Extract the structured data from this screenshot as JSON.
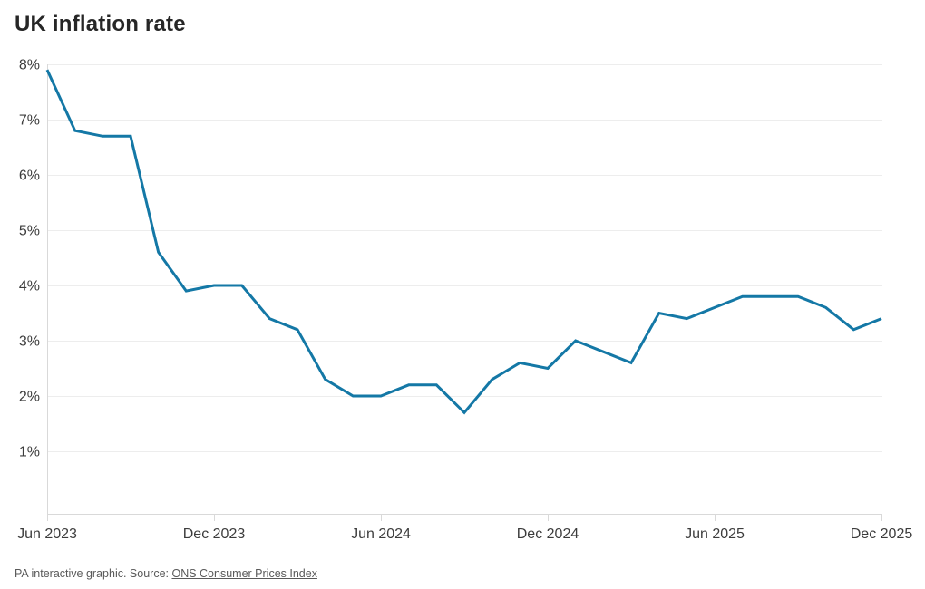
{
  "chart": {
    "title": "UK inflation rate"
  },
  "chart_data": {
    "type": "line",
    "title": "UK inflation rate",
    "series_name": "UK inflation rate",
    "x": [
      "Jun 2023",
      "Jul 2023",
      "Aug 2023",
      "Sep 2023",
      "Oct 2023",
      "Nov 2023",
      "Dec 2023",
      "Jan 2024",
      "Feb 2024",
      "Mar 2024",
      "Apr 2024",
      "May 2024",
      "Jun 2024",
      "Jul 2024",
      "Aug 2024",
      "Sep 2024",
      "Oct 2024",
      "Nov 2024",
      "Dec 2024",
      "Jan 2025",
      "Feb 2025",
      "Mar 2025",
      "Apr 2025",
      "May 2025",
      "Jun 2025",
      "Jul 2025",
      "Aug 2025",
      "Sep 2025",
      "Oct 2025",
      "Nov 2025",
      "Dec 2025"
    ],
    "values": [
      7.9,
      6.8,
      6.7,
      6.7,
      4.6,
      3.9,
      4.0,
      4.0,
      3.4,
      3.2,
      2.3,
      2.0,
      2.0,
      2.2,
      2.2,
      1.7,
      2.3,
      2.6,
      2.5,
      3.0,
      2.8,
      2.6,
      3.5,
      3.4,
      3.6,
      3.8,
      3.8,
      3.8,
      3.6,
      3.2,
      3.4
    ],
    "xlabel": "",
    "ylabel": "",
    "x_tick_labels": [
      "Jun 2023",
      "Dec 2023",
      "Jun 2024",
      "Dec 2024",
      "Jun 2025",
      "Dec 2025"
    ],
    "y_ticks": [
      8,
      7,
      6,
      5,
      4,
      3,
      2,
      1
    ],
    "y_tick_suffix": "%",
    "ylim": [
      0,
      8
    ],
    "grid": "horizontal-only",
    "legend": "none",
    "line_color": "#1478a6",
    "grid_color": "#ededed",
    "axis_color": "#d9d9d9",
    "label_color": "#3c3c3c"
  },
  "footer": {
    "prefix": "PA interactive graphic. Source: ",
    "link_text": "ONS Consumer Prices Index"
  }
}
